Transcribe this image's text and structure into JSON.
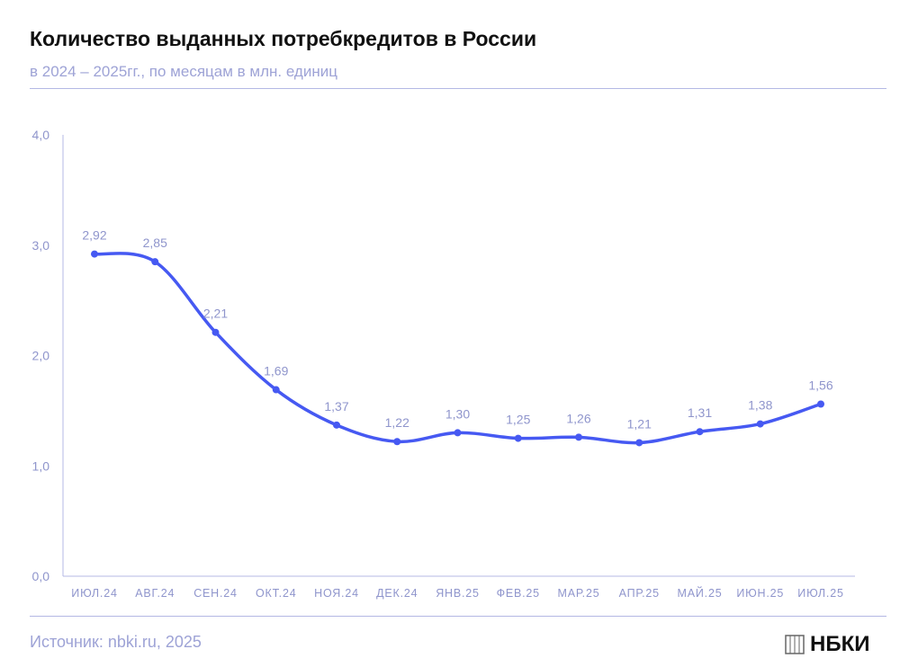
{
  "header": {
    "title": "Количество выданных потребкредитов в России",
    "subtitle": "в 2024 – 2025гг., по месяцам в млн. единиц"
  },
  "footer": {
    "source": "Источник: nbki.ru, 2025",
    "logo_text": "НБКИ"
  },
  "colors": {
    "line": "#4659f2",
    "labels": "#8f95cc",
    "axis": "#b4b8e4"
  },
  "chart_data": {
    "type": "line",
    "title": "",
    "xlabel": "",
    "ylabel": "",
    "categories": [
      "ИЮЛ.24",
      "АВГ.24",
      "СЕН.24",
      "ОКТ.24",
      "НОЯ.24",
      "ДЕК.24",
      "ЯНВ.25",
      "ФЕВ.25",
      "МАР.25",
      "АПР.25",
      "МАЙ.25",
      "ИЮН.25",
      "ИЮЛ.25"
    ],
    "values": [
      2.92,
      2.85,
      2.21,
      1.69,
      1.37,
      1.22,
      1.3,
      1.25,
      1.26,
      1.21,
      1.31,
      1.38,
      1.56
    ],
    "data_labels": [
      "2,92",
      "2,85",
      "2,21",
      "1,69",
      "1,37",
      "1,22",
      "1,30",
      "1,25",
      "1,26",
      "1,21",
      "1,31",
      "1,38",
      "1,56"
    ],
    "yticks": [
      "0,0",
      "1,0",
      "2,0",
      "3,0",
      "4,0"
    ],
    "ylim": [
      0,
      4
    ],
    "grid": false,
    "smooth": true
  }
}
